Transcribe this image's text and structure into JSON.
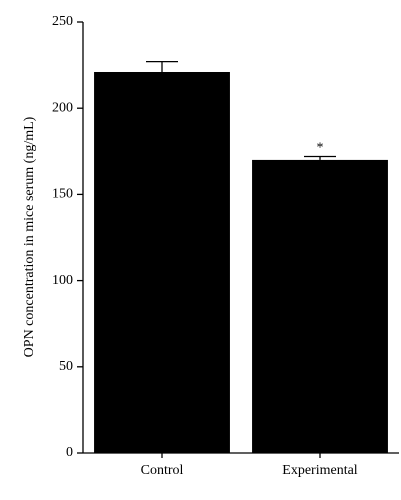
{
  "chart_data": {
    "type": "bar",
    "ylabel": "OPN concentration in mice serum (ng/mL)",
    "categories": [
      "Control",
      "Experimental"
    ],
    "values": [
      221,
      170
    ],
    "errors": [
      6,
      2
    ],
    "annotations": [
      null,
      "*"
    ],
    "color": "#000000",
    "ylim": [
      0,
      250
    ],
    "yticks": [
      0,
      50,
      100,
      150,
      200,
      250
    ]
  }
}
